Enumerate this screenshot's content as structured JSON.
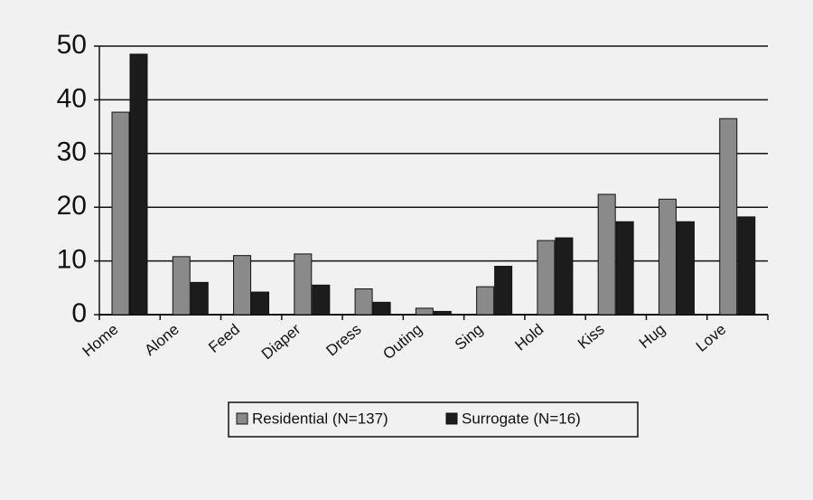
{
  "chart_data": {
    "type": "bar",
    "categories": [
      "Home",
      "Alone",
      "Feed",
      "Diaper",
      "Dress",
      "Outing",
      "Sing",
      "Hold",
      "Kiss",
      "Hug",
      "Love"
    ],
    "series": [
      {
        "name": "Residential (N=137)",
        "color": "#8a8a8a",
        "values": [
          37.7,
          10.8,
          11,
          11.3,
          4.8,
          1.2,
          5.2,
          13.8,
          22.4,
          21.5,
          36.5
        ]
      },
      {
        "name": "Surrogate (N=16)",
        "color": "#1c1c1c",
        "values": [
          48.5,
          6,
          4.2,
          5.5,
          2.3,
          0.6,
          9,
          14.3,
          17.3,
          17.3,
          18.2
        ]
      }
    ],
    "ylim": [
      0,
      50
    ],
    "yticks": [
      0,
      10,
      20,
      30,
      40,
      50
    ],
    "grid": true
  }
}
